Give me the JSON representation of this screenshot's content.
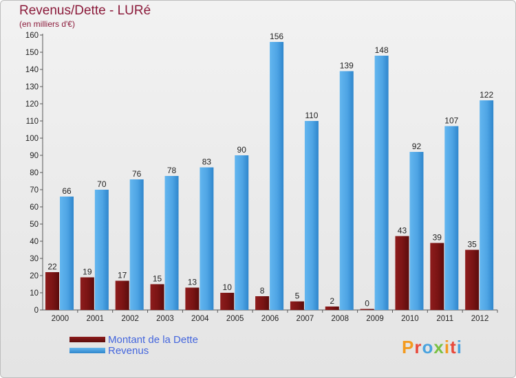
{
  "header": {
    "title": "Revenus/Dette - LURé",
    "subtitle": "(en milliers d'€)"
  },
  "legend": {
    "debt_label": "Montant de la Dette",
    "revenue_label": "Revenus"
  },
  "logo": {
    "text": "Proxiti",
    "letter_colors": [
      "#f39a1e",
      "#e84a3c",
      "#4aa3df",
      "#7ac143",
      "#f39a1e",
      "#e84a3c",
      "#4aa3df"
    ]
  },
  "colors": {
    "debt": "#7a1414",
    "revenue": "#4ea4e4",
    "title": "#8b1a3a",
    "legend_text": "#4466dd"
  },
  "chart_data": {
    "type": "bar",
    "title": "Revenus/Dette - LURé",
    "subtitle": "(en milliers d'€)",
    "categories": [
      "2000",
      "2001",
      "2002",
      "2003",
      "2004",
      "2005",
      "2006",
      "2007",
      "2008",
      "2009",
      "2010",
      "2011",
      "2012"
    ],
    "series": [
      {
        "name": "Montant de la Dette",
        "values": [
          22,
          19,
          17,
          15,
          13,
          10,
          8,
          5,
          2,
          0,
          43,
          39,
          35
        ]
      },
      {
        "name": "Revenus",
        "values": [
          66,
          70,
          76,
          78,
          83,
          90,
          156,
          110,
          139,
          148,
          92,
          107,
          122
        ]
      }
    ],
    "ylim": [
      0,
      160
    ],
    "ytick_step": 10,
    "grid": false,
    "legend_position": "bottom-left"
  }
}
